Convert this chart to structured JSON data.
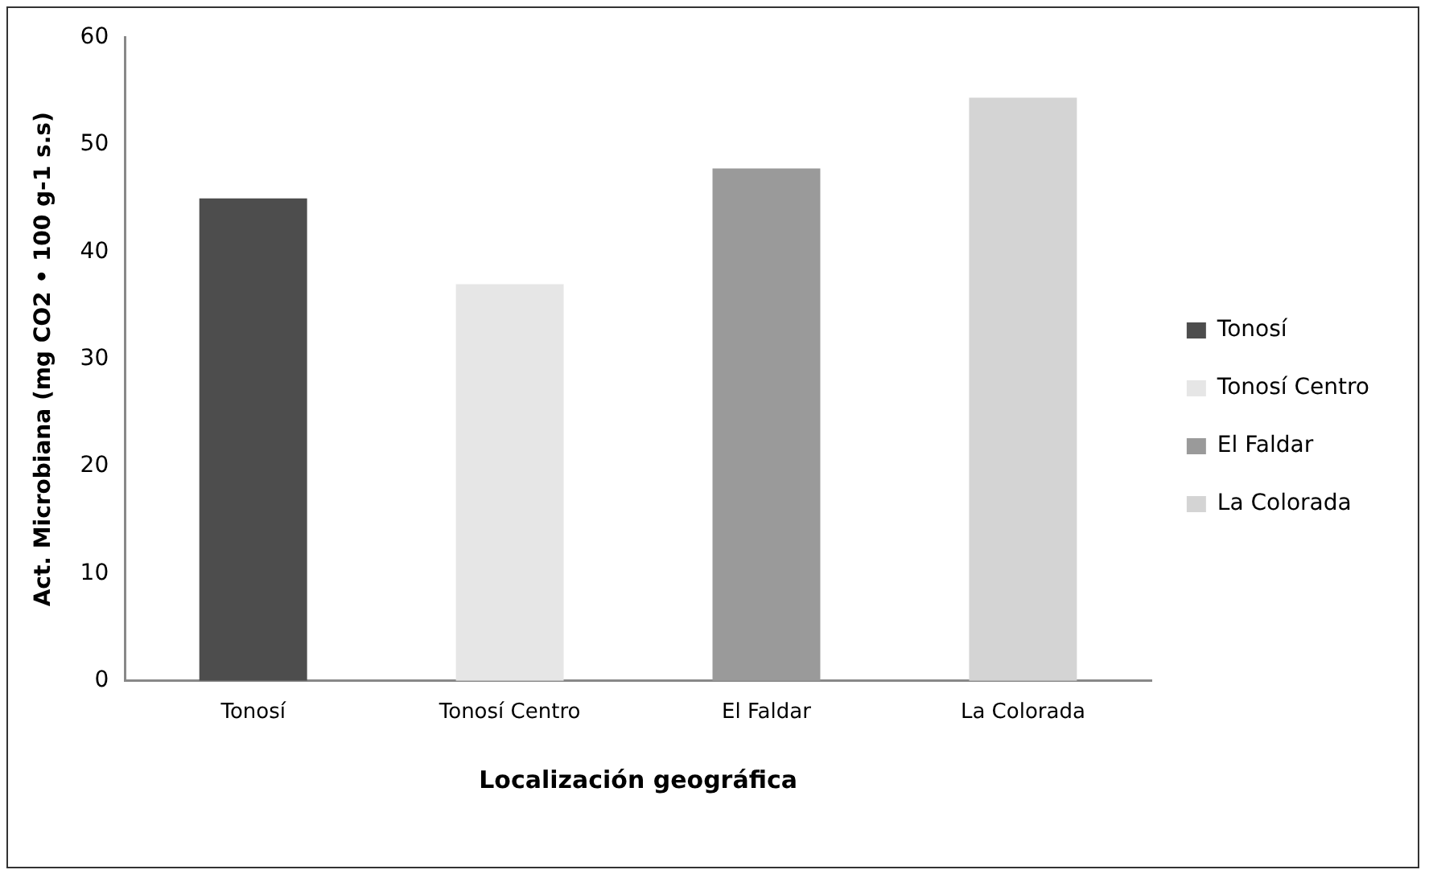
{
  "chart_data": {
    "type": "bar",
    "categories": [
      "Tonosí",
      "Tonosí Centro",
      "El Faldar",
      "La Colorada"
    ],
    "series": [
      {
        "name": "Tonosí",
        "color": "#4d4d4d",
        "values": [
          45,
          null,
          null,
          null
        ]
      },
      {
        "name": "Tonosí Centro",
        "color": "#e6e6e6",
        "values": [
          null,
          37,
          null,
          null
        ]
      },
      {
        "name": "El Faldar",
        "color": "#9a9a9a",
        "values": [
          null,
          null,
          47.8,
          null
        ]
      },
      {
        "name": "La Colorada",
        "color": "#d4d4d4",
        "values": [
          null,
          null,
          null,
          54.4
        ]
      }
    ],
    "xlabel": "Localización geográfica",
    "ylabel": "Act. Microbiana (mg CO2 • 100 g-1 s.s)",
    "ylim": [
      0,
      60
    ],
    "yticks": [
      0,
      10,
      20,
      30,
      40,
      50,
      60
    ],
    "grid": false,
    "legend": "right"
  }
}
